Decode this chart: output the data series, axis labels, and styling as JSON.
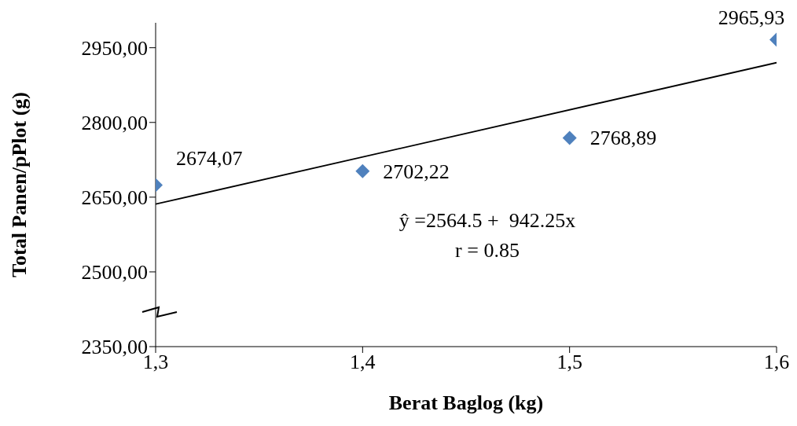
{
  "chart_data": {
    "type": "scatter",
    "xlabel": "Berat Baglog (kg)",
    "ylabel": "Total Panen/pPlot (g)",
    "x": [
      1.3,
      1.4,
      1.5,
      1.6
    ],
    "series": [
      {
        "color": "#4f81bd",
        "values": [
          2674.07,
          2702.22,
          2768.89,
          2965.93
        ],
        "value_labels": [
          "2674,07",
          "2702,22",
          "2768,89",
          "2965,93"
        ]
      },
      {
        "type": "line",
        "color": "#000000",
        "x": [
          1.3,
          1.6
        ],
        "values": [
          2636,
          2920
        ],
        "marker": "none"
      }
    ],
    "xlim": [
      1.3,
      1.6
    ],
    "xticks": [
      {
        "value": 1.3,
        "label": "1,3"
      },
      {
        "value": 1.4,
        "label": "1,4"
      },
      {
        "value": 1.5,
        "label": "1,5"
      },
      {
        "value": 1.6,
        "label": "1,6"
      }
    ],
    "ylim": [
      2350,
      3000
    ],
    "yticks": [
      {
        "value": 2350,
        "label": "2350,00"
      },
      {
        "value": 2500,
        "label": "2500,00"
      },
      {
        "value": 2650,
        "label": "2650,00"
      },
      {
        "value": 2800,
        "label": "2800,00"
      },
      {
        "value": 2950,
        "label": "2950,00"
      }
    ],
    "annotations": [
      "ŷ =2564.5 +  942.25x",
      "r = 0.85"
    ],
    "grid": false,
    "legend": false,
    "marker": "diamond",
    "line_style": "solid"
  }
}
